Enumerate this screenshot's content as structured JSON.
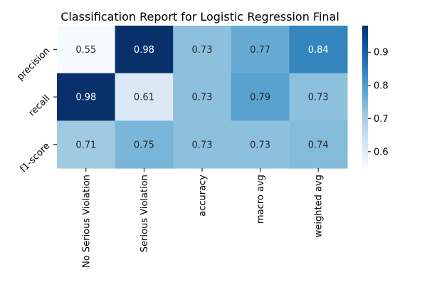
{
  "chart_data": {
    "type": "heatmap",
    "title": "Classification Report for Logistic Regression Final",
    "rows": [
      "precision",
      "recall",
      "f1-score"
    ],
    "columns": [
      "No Serious Violation",
      "Serious Violation",
      "accuracy",
      "macro avg",
      "weighted avg"
    ],
    "values": [
      [
        0.55,
        0.98,
        0.73,
        0.77,
        0.84
      ],
      [
        0.98,
        0.61,
        0.73,
        0.79,
        0.73
      ],
      [
        0.71,
        0.75,
        0.73,
        0.73,
        0.74
      ]
    ],
    "value_labels": [
      [
        "0.55",
        "0.98",
        "0.73",
        "0.77",
        "0.84"
      ],
      [
        "0.98",
        "0.61",
        "0.73",
        "0.79",
        "0.73"
      ],
      [
        "0.71",
        "0.75",
        "0.73",
        "0.73",
        "0.74"
      ]
    ],
    "colormap": "Blues",
    "vmin": 0.55,
    "vmax": 0.98,
    "colorbar_ticks": [
      0.6,
      0.7,
      0.8,
      0.9
    ],
    "colorbar_tick_labels": [
      "0.6",
      "0.7",
      "0.8",
      "0.9"
    ],
    "xlabel": "",
    "ylabel": "",
    "grid": false,
    "legend": "colorbar-right"
  }
}
